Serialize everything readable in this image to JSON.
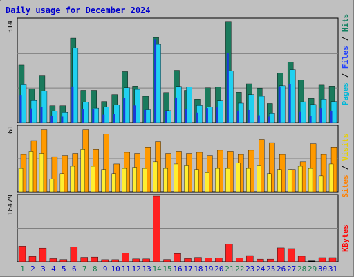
{
  "chart_data": [
    {
      "type": "bar",
      "title": "Daily usage for December 2024",
      "categories": [
        "1",
        "2",
        "3",
        "4",
        "5",
        "6",
        "7",
        "8",
        "9",
        "10",
        "11",
        "12",
        "13",
        "14",
        "15",
        "16",
        "17",
        "18",
        "19",
        "20",
        "21",
        "22",
        "23",
        "24",
        "25",
        "26",
        "27",
        "28",
        "29",
        "30",
        "31"
      ],
      "ymax_label": "314",
      "ylim": [
        0,
        314
      ],
      "labels": [
        {
          "text": "Pages",
          "color": "#00b8d8"
        },
        {
          "text": " / ",
          "color": "#000000"
        },
        {
          "text": "Files",
          "color": "#2040ff"
        },
        {
          "text": " / ",
          "color": "#000000"
        },
        {
          "text": "Hits",
          "color": "#108060"
        }
      ],
      "series": [
        {
          "name": "Hits",
          "color": "#1a7a5c",
          "values": [
            175,
            103,
            142,
            51,
            51,
            257,
            98,
            98,
            64,
            85,
            155,
            111,
            80,
            259,
            91,
            159,
            98,
            71,
            106,
            108,
            306,
            92,
            118,
            105,
            58,
            151,
            184,
            130,
            73,
            114,
            111
          ]
        },
        {
          "name": "Files",
          "color": "#1a3ad8",
          "values": [
            84,
            43,
            47,
            20,
            18,
            110,
            40,
            40,
            24,
            26,
            75,
            52,
            38,
            252,
            35,
            76,
            42,
            30,
            44,
            46,
            212,
            36,
            38,
            22,
            18,
            110,
            118,
            32,
            20,
            44,
            36
          ]
        },
        {
          "name": "Pages",
          "color": "#20d0f0",
          "values": [
            115,
            67,
            96,
            35,
            31,
            226,
            62,
            44,
            47,
            54,
            106,
            101,
            39,
            238,
            36,
            110,
            109,
            52,
            47,
            66,
            157,
            59,
            85,
            80,
            29,
            112,
            161,
            63,
            55,
            71,
            64
          ]
        }
      ],
      "grid": true
    },
    {
      "type": "bar",
      "categories": [
        "1",
        "2",
        "3",
        "4",
        "5",
        "6",
        "7",
        "8",
        "9",
        "10",
        "11",
        "12",
        "13",
        "14",
        "15",
        "16",
        "17",
        "18",
        "19",
        "20",
        "21",
        "22",
        "23",
        "24",
        "25",
        "26",
        "27",
        "28",
        "29",
        "30",
        "31"
      ],
      "ymax_label": "61",
      "ylim": [
        0,
        61
      ],
      "labels": [
        {
          "text": "Sites",
          "color": "#ff8000"
        },
        {
          "text": " / ",
          "color": "#000000"
        },
        {
          "text": "Visits",
          "color": "#e8d000"
        }
      ],
      "series": [
        {
          "name": "Visits",
          "color": "#ff9a00",
          "values": [
            35,
            48,
            58,
            33,
            34,
            36,
            58,
            40,
            54,
            26,
            37,
            36,
            42,
            47,
            36,
            38,
            36,
            37,
            34,
            39,
            38,
            35,
            39,
            49,
            46,
            35,
            21,
            28,
            45,
            35,
            42
          ]
        },
        {
          "name": "Sites",
          "color": "#ffee30",
          "values": [
            22,
            38,
            36,
            12,
            17,
            24,
            40,
            24,
            21,
            17,
            22,
            23,
            22,
            28,
            22,
            26,
            25,
            21,
            18,
            22,
            22,
            27,
            22,
            25,
            17,
            21,
            21,
            24,
            22,
            15,
            26
          ]
        }
      ],
      "grid": true
    },
    {
      "type": "bar",
      "categories": [
        "1",
        "2",
        "3",
        "4",
        "5",
        "6",
        "7",
        "8",
        "9",
        "10",
        "11",
        "12",
        "13",
        "14",
        "15",
        "16",
        "17",
        "18",
        "19",
        "20",
        "21",
        "22",
        "23",
        "24",
        "25",
        "26",
        "27",
        "28",
        "29",
        "30",
        "31"
      ],
      "ymax_label": "16479",
      "ylim": [
        0,
        16479
      ],
      "labels": [
        {
          "text": "KBytes",
          "color": "#ff0000"
        }
      ],
      "series": [
        {
          "name": "KBytes",
          "color": "#ff2020",
          "values": [
            3930,
            1330,
            3440,
            790,
            560,
            3690,
            1120,
            1190,
            540,
            540,
            2220,
            720,
            720,
            16479,
            580,
            2040,
            800,
            1100,
            930,
            920,
            4470,
            910,
            1550,
            670,
            670,
            3480,
            3300,
            1400,
            0,
            1040,
            1040
          ]
        }
      ],
      "grid": true
    }
  ],
  "x_axis": {
    "day_colors": {
      "weekend": "#1a8050",
      "weekday": "#0000cc"
    },
    "weekend_days": [
      "1",
      "7",
      "8",
      "14",
      "15",
      "21",
      "22",
      "28",
      "29"
    ]
  },
  "colors": {
    "background": "#c0c0c0",
    "panel_background": "#c0c0c0",
    "gridline": "#808080"
  }
}
